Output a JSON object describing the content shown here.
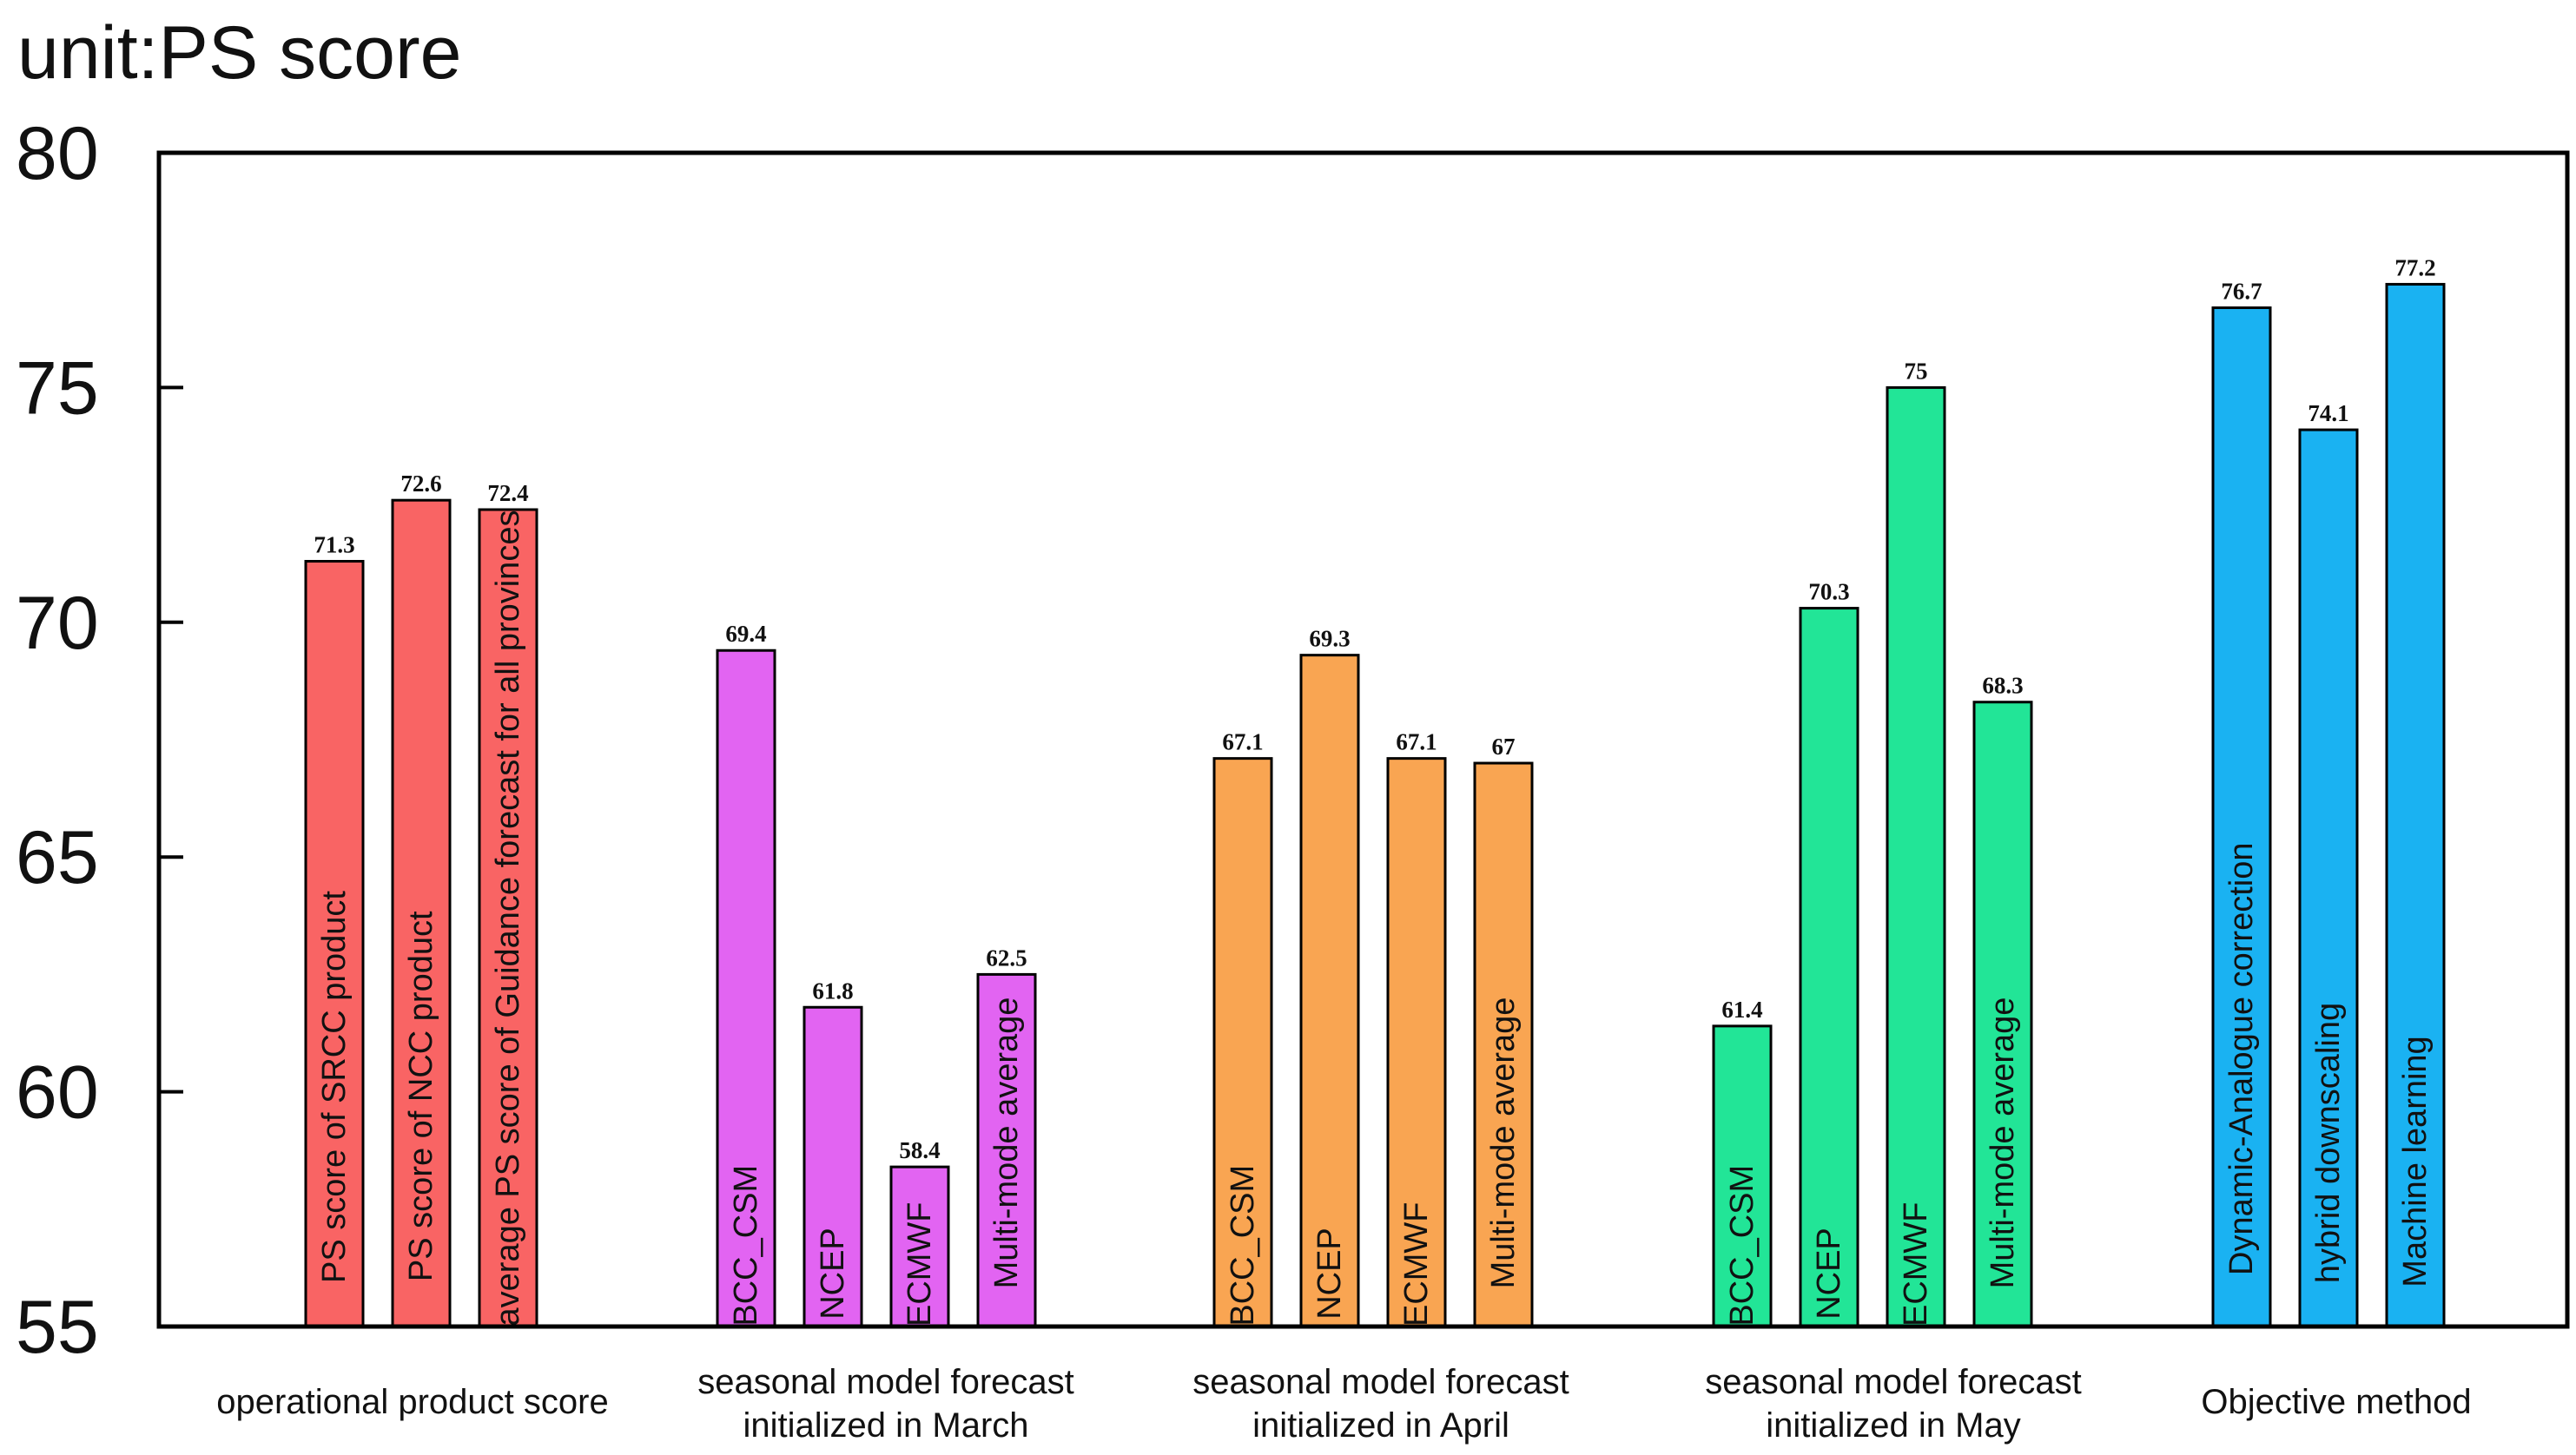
{
  "chart_data": {
    "type": "bar",
    "unit_label": "unit:PS score",
    "ylim": [
      55,
      80
    ],
    "yticks": [
      "55",
      "60",
      "65",
      "70",
      "75",
      "80"
    ],
    "grid": false,
    "groups": [
      {
        "label_lines": [
          "operational product score"
        ],
        "color": "#f96464",
        "bars": [
          {
            "label": "PS score of SRCC product",
            "value": 71.3,
            "value_text": "71.3"
          },
          {
            "label": "PS score of NCC product",
            "value": 72.6,
            "value_text": "72.6"
          },
          {
            "label": "average PS score of Guidance forecast for all provinces",
            "value": 72.4,
            "value_text": "72.4"
          }
        ]
      },
      {
        "label_lines": [
          "seasonal model forecast",
          "initialized in March"
        ],
        "color": "#e264f2",
        "bars": [
          {
            "label": "BCC_CSM",
            "value": 69.4,
            "value_text": "69.4"
          },
          {
            "label": "NCEP",
            "value": 61.8,
            "value_text": "61.8"
          },
          {
            "label": "ECMWF",
            "value": 58.4,
            "value_text": "58.4"
          },
          {
            "label": "Multi-mode average",
            "value": 62.5,
            "value_text": "62.5"
          }
        ]
      },
      {
        "label_lines": [
          "seasonal model forecast",
          "initialized in April"
        ],
        "color": "#f9a552",
        "bars": [
          {
            "label": "BCC_CSM",
            "value": 67.1,
            "value_text": "67.1"
          },
          {
            "label": "NCEP",
            "value": 69.3,
            "value_text": "69.3"
          },
          {
            "label": "ECMWF",
            "value": 67.1,
            "value_text": "67.1"
          },
          {
            "label": "Multi-mode average",
            "value": 67,
            "value_text": "67"
          }
        ]
      },
      {
        "label_lines": [
          "seasonal model forecast",
          "initialized in May"
        ],
        "color": "#22e597",
        "bars": [
          {
            "label": "BCC_CSM",
            "value": 61.4,
            "value_text": "61.4"
          },
          {
            "label": "NCEP",
            "value": 70.3,
            "value_text": "70.3"
          },
          {
            "label": "ECMWF",
            "value": 75,
            "value_text": "75"
          },
          {
            "label": "Multi-mode average",
            "value": 68.3,
            "value_text": "68.3"
          }
        ]
      },
      {
        "label_lines": [
          "Objective method"
        ],
        "color": "#1ab2f2",
        "bars": [
          {
            "label": "Dynamic-Analogue correction",
            "value": 76.7,
            "value_text": "76.7"
          },
          {
            "label": "hybrid downscaling",
            "value": 74.1,
            "value_text": "74.1"
          },
          {
            "label": "Machine learning",
            "value": 77.2,
            "value_text": "77.2"
          }
        ]
      }
    ]
  }
}
